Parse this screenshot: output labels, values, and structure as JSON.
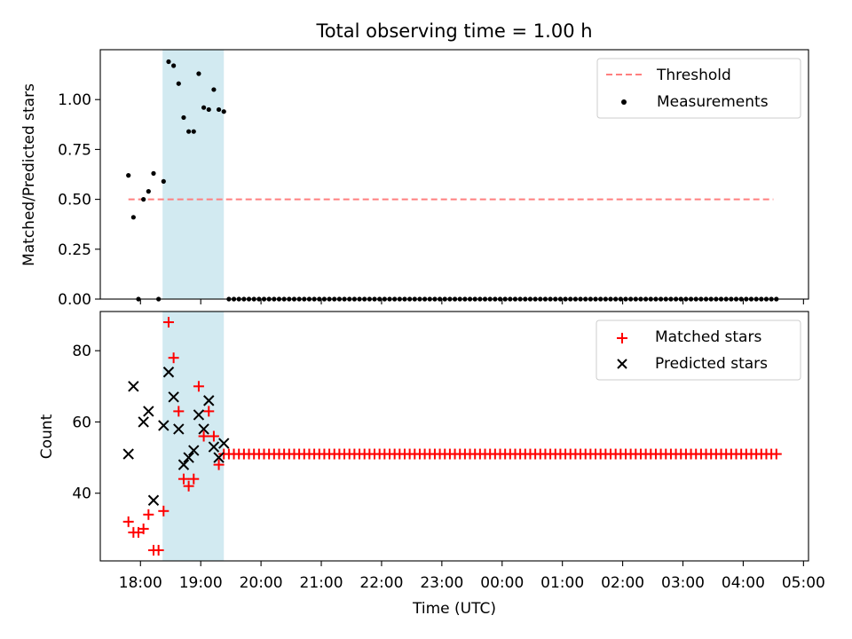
{
  "figure_title": "Total observing time = 1.00 h",
  "chart_data": [
    {
      "type": "scatter",
      "panel": "top",
      "ylabel": "Matched/Predicted stars",
      "xlabel": "",
      "ylim": [
        0,
        1.25
      ],
      "yticks": [
        0.0,
        0.25,
        0.5,
        0.75,
        1.0
      ],
      "ytick_labels": [
        "0.00",
        "0.25",
        "0.50",
        "0.75",
        "1.00"
      ],
      "xlim": [
        "17:20",
        "05:05"
      ],
      "shaded_region": {
        "x_start": "18:22",
        "x_end": "19:23",
        "color": "#add8e6"
      },
      "legend": {
        "placement": "upper right",
        "entries": [
          "Threshold",
          "Measurements"
        ]
      },
      "threshold": {
        "name": "Threshold",
        "value": 0.5,
        "x_start": "17:48",
        "x_end": "04:30",
        "color": "#ff7f7f",
        "style": "dashed"
      },
      "series": [
        {
          "name": "Measurements",
          "marker": "dot",
          "color": "#000000",
          "points": [
            [
              "17:48",
              0.62
            ],
            [
              "17:53",
              0.41
            ],
            [
              "17:58",
              0.0
            ],
            [
              "18:03",
              0.5
            ],
            [
              "18:08",
              0.54
            ],
            [
              "18:13",
              0.63
            ],
            [
              "18:18",
              0.0
            ],
            [
              "18:23",
              0.59
            ],
            [
              "18:28",
              1.19
            ],
            [
              "18:33",
              1.17
            ],
            [
              "18:38",
              1.08
            ],
            [
              "18:43",
              0.91
            ],
            [
              "18:48",
              0.84
            ],
            [
              "18:53",
              0.84
            ],
            [
              "18:58",
              1.13
            ],
            [
              "19:03",
              0.96
            ],
            [
              "19:08",
              0.95
            ],
            [
              "19:13",
              1.05
            ],
            [
              "19:18",
              0.95
            ],
            [
              "19:23",
              0.94
            ]
          ],
          "zero_run": {
            "x_start": "19:28",
            "x_end": "04:33",
            "step_minutes": 5,
            "value": 0.0
          }
        }
      ]
    },
    {
      "type": "scatter",
      "panel": "bottom",
      "ylabel": "Count",
      "xlabel": "Time (UTC)",
      "ylim": [
        21,
        91
      ],
      "yticks": [
        40,
        60,
        80
      ],
      "ytick_labels": [
        "40",
        "60",
        "80"
      ],
      "xlim": [
        "17:20",
        "05:05"
      ],
      "xtick_labels": [
        "18:00",
        "19:00",
        "20:00",
        "21:00",
        "22:00",
        "23:00",
        "00:00",
        "01:00",
        "02:00",
        "03:00",
        "04:00",
        "05:00"
      ],
      "shaded_region": {
        "x_start": "18:22",
        "x_end": "19:23",
        "color": "#add8e6"
      },
      "legend": {
        "placement": "upper right",
        "entries": [
          "Matched stars",
          "Predicted stars"
        ]
      },
      "series": [
        {
          "name": "Matched stars",
          "marker": "plus",
          "color": "#ff0000",
          "points": [
            [
              "17:48",
              32
            ],
            [
              "17:53",
              29
            ],
            [
              "17:58",
              29
            ],
            [
              "18:03",
              30
            ],
            [
              "18:08",
              34
            ],
            [
              "18:13",
              24
            ],
            [
              "18:18",
              24
            ],
            [
              "18:23",
              35
            ],
            [
              "18:28",
              88
            ],
            [
              "18:33",
              78
            ],
            [
              "18:38",
              63
            ],
            [
              "18:43",
              44
            ],
            [
              "18:48",
              42
            ],
            [
              "18:53",
              44
            ],
            [
              "18:58",
              70
            ],
            [
              "19:03",
              56
            ],
            [
              "19:08",
              63
            ],
            [
              "19:13",
              56
            ],
            [
              "19:18",
              48
            ],
            [
              "19:23",
              51
            ]
          ],
          "constant_run": {
            "x_start": "19:28",
            "x_end": "04:33",
            "step_minutes": 5,
            "value": 51
          }
        },
        {
          "name": "Predicted stars",
          "marker": "x",
          "color": "#000000",
          "points": [
            [
              "17:48",
              51
            ],
            [
              "17:53",
              70
            ],
            [
              "18:03",
              60
            ],
            [
              "18:08",
              63
            ],
            [
              "18:13",
              38
            ],
            [
              "18:23",
              59
            ],
            [
              "18:28",
              74
            ],
            [
              "18:33",
              67
            ],
            [
              "18:38",
              58
            ],
            [
              "18:43",
              48
            ],
            [
              "18:48",
              50
            ],
            [
              "18:53",
              52
            ],
            [
              "18:58",
              62
            ],
            [
              "19:03",
              58
            ],
            [
              "19:08",
              66
            ],
            [
              "19:13",
              53
            ],
            [
              "19:18",
              50
            ],
            [
              "19:23",
              54
            ]
          ]
        }
      ]
    }
  ]
}
